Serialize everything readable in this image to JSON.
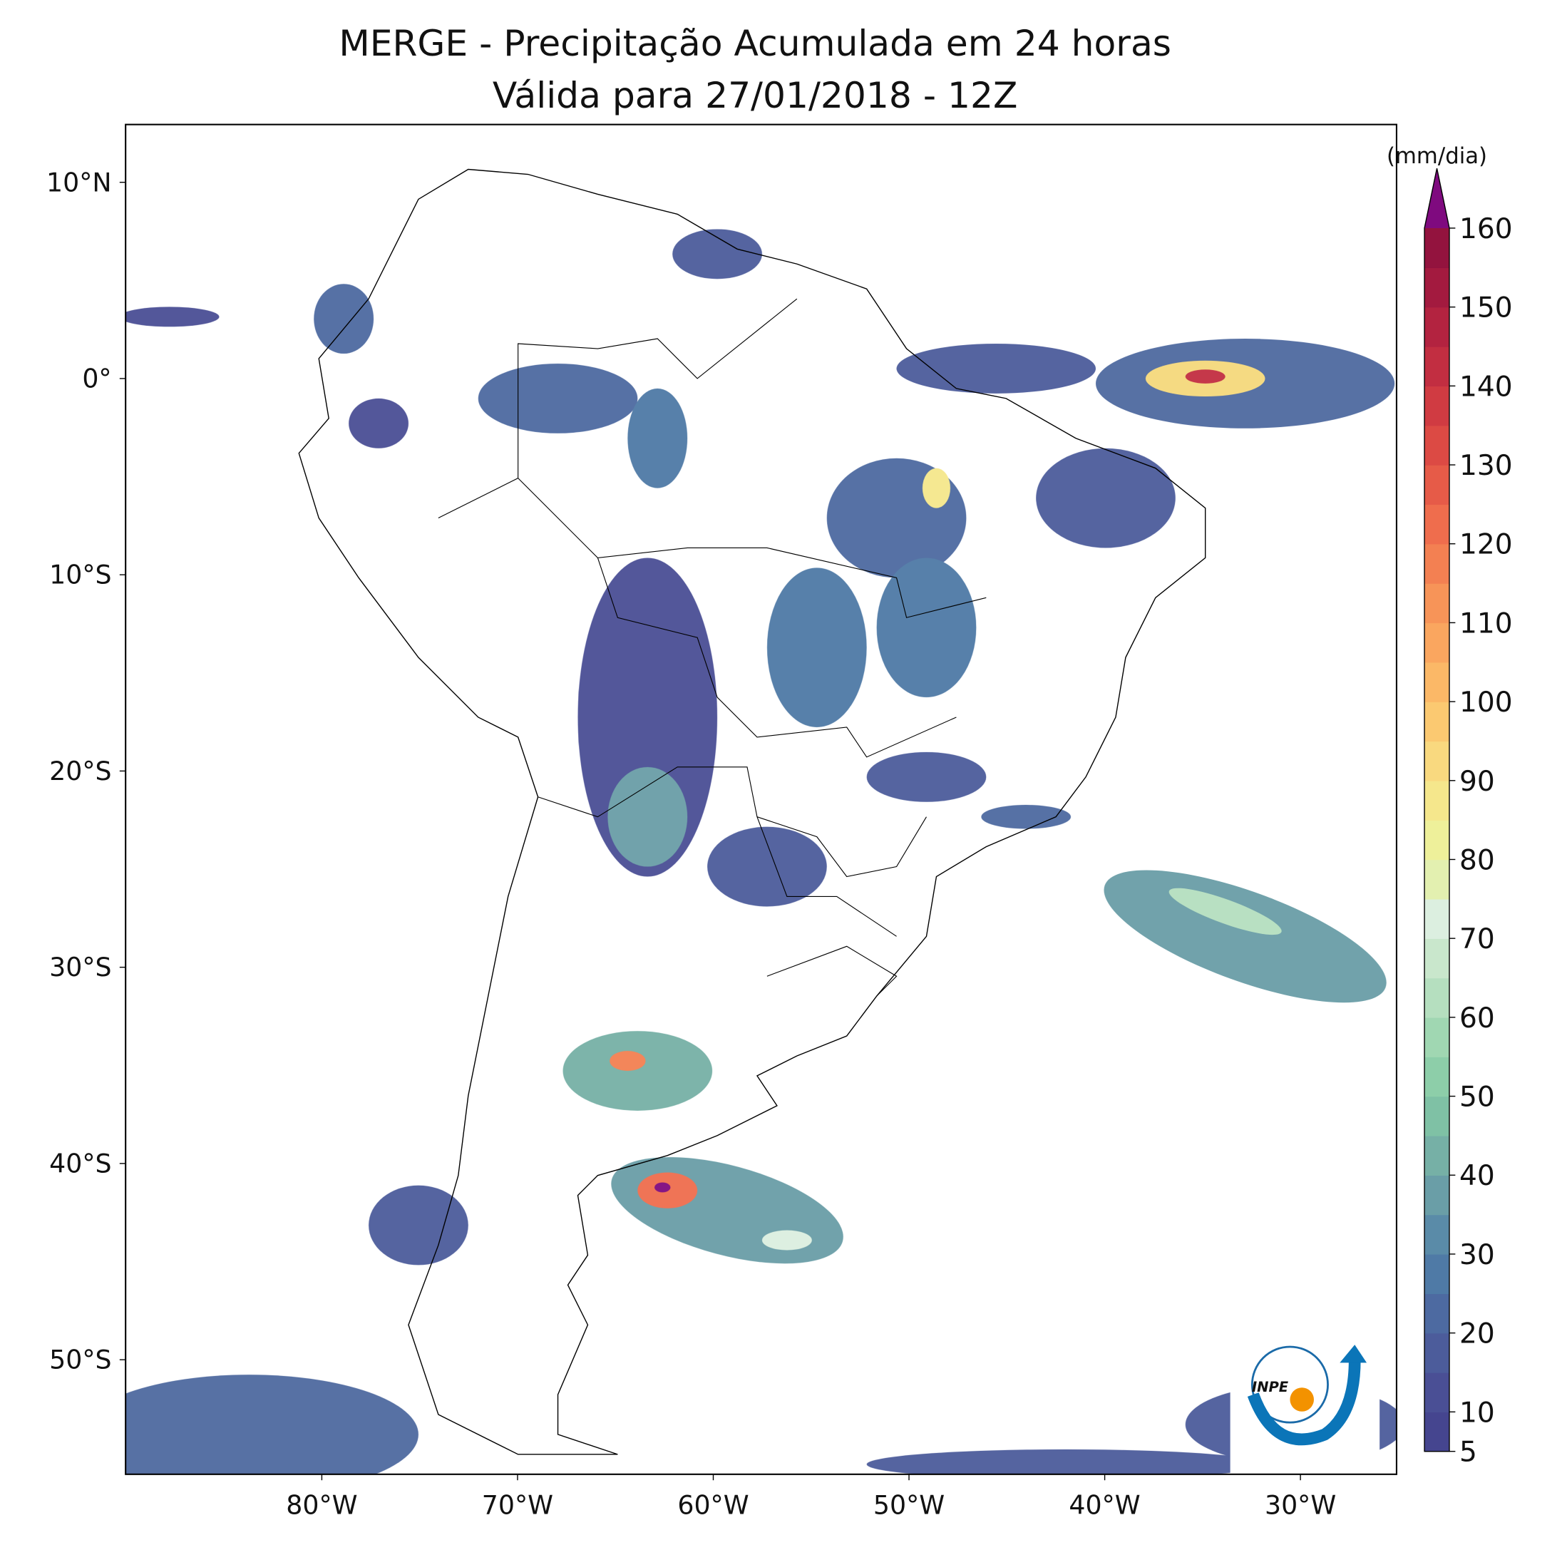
{
  "title": [
    "MERGE - Precipitação Acumulada em 24 horas",
    "Válida para 27/01/2018 - 12Z"
  ],
  "map": {
    "lat_labels": [
      "10°N",
      "0°",
      "10°S",
      "20°S",
      "30°S",
      "40°S",
      "50°S"
    ],
    "lon_labels": [
      "80°W",
      "70°W",
      "60°W",
      "50°W",
      "40°W",
      "30°W"
    ]
  },
  "colorbar": {
    "unit": "(mm/dia)",
    "ticks": [
      5,
      10,
      20,
      30,
      40,
      50,
      60,
      70,
      80,
      90,
      100,
      110,
      120,
      130,
      140,
      150,
      160
    ],
    "lim": [
      5,
      160
    ],
    "colors": [
      "#45458f",
      "#4a4f95",
      "#4c5c9b",
      "#4d6aa1",
      "#4f7aa6",
      "#5a8ba8",
      "#6a9ea7",
      "#76b0a6",
      "#7fc1a5",
      "#8dcea9",
      "#a0d7b2",
      "#b5dfbf",
      "#c9e7cc",
      "#dcefe0",
      "#e3f0b0",
      "#eef09a",
      "#f5e78c",
      "#f9d97f",
      "#fbc971",
      "#fbb867",
      "#faa65f",
      "#f79458",
      "#f38052",
      "#ef6d4d",
      "#e65b48",
      "#dc4a44",
      "#d03b42",
      "#c22e41",
      "#b32340",
      "#a31a3f",
      "#93133e"
    ],
    "extend_color": "#7f0a7f"
  },
  "logo_text": "INPE"
}
